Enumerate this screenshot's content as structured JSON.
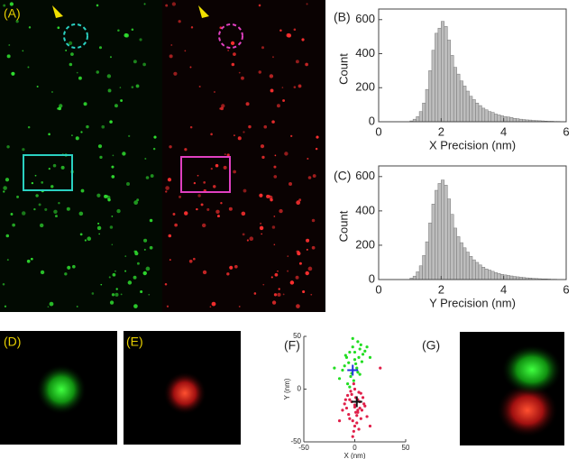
{
  "labels": [
    "(A)",
    "(B)",
    "(C)",
    "(D)",
    "(E)",
    "(F)",
    "(G)"
  ],
  "chart_data": [
    {
      "type": "histogram",
      "xlabel": "X Precision (nm)",
      "ylabel": "Count",
      "color": "#bdbdbd",
      "bins": [
        0.9,
        1.0,
        1.1,
        1.2,
        1.3,
        1.4,
        1.5,
        1.6,
        1.7,
        1.8,
        1.9,
        2.0,
        2.1,
        2.2,
        2.3,
        2.4,
        2.5,
        2.6,
        2.7,
        2.8,
        2.9,
        3.0,
        3.1,
        3.2,
        3.3,
        3.4,
        3.5,
        3.6,
        3.7,
        3.8,
        3.9,
        4.0,
        4.1,
        4.2,
        4.3,
        4.4,
        4.5,
        4.6,
        4.7,
        4.8,
        4.9,
        5.0,
        5.1,
        5.2,
        5.3,
        5.4,
        5.5,
        5.6,
        5.7,
        5.8,
        5.9,
        6.0
      ],
      "counts": [
        0,
        5,
        15,
        30,
        60,
        110,
        190,
        300,
        420,
        520,
        550,
        590,
        560,
        480,
        390,
        320,
        280,
        240,
        210,
        180,
        150,
        130,
        110,
        95,
        80,
        70,
        60,
        55,
        45,
        40,
        35,
        30,
        28,
        25,
        20,
        18,
        15,
        13,
        11,
        10,
        8,
        7,
        6,
        5,
        4,
        3,
        3,
        2,
        2,
        1,
        1
      ],
      "xlim": [
        0,
        6
      ],
      "xticks": [
        0,
        2,
        4,
        6
      ],
      "ylim": [
        0,
        620
      ],
      "yticks": [
        0,
        200,
        400,
        600
      ]
    },
    {
      "type": "histogram",
      "xlabel": "Y Precision (nm)",
      "ylabel": "Count",
      "color": "#bdbdbd",
      "bins": [
        0.9,
        1.0,
        1.1,
        1.2,
        1.3,
        1.4,
        1.5,
        1.6,
        1.7,
        1.8,
        1.9,
        2.0,
        2.1,
        2.2,
        2.3,
        2.4,
        2.5,
        2.6,
        2.7,
        2.8,
        2.9,
        3.0,
        3.1,
        3.2,
        3.3,
        3.4,
        3.5,
        3.6,
        3.7,
        3.8,
        3.9,
        4.0,
        4.1,
        4.2,
        4.3,
        4.4,
        4.5,
        4.6,
        4.7,
        4.8,
        4.9,
        5.0,
        5.1,
        5.2,
        5.3,
        5.4,
        5.5,
        5.6,
        5.7,
        5.8,
        5.9,
        6.0
      ],
      "counts": [
        0,
        8,
        20,
        45,
        80,
        140,
        220,
        330,
        440,
        520,
        560,
        580,
        550,
        470,
        380,
        300,
        250,
        215,
        185,
        160,
        135,
        115,
        100,
        85,
        72,
        62,
        55,
        48,
        40,
        35,
        30,
        27,
        24,
        21,
        18,
        16,
        14,
        12,
        10,
        9,
        7,
        6,
        5,
        4,
        4,
        3,
        2,
        2,
        1,
        1,
        1
      ],
      "xlim": [
        0,
        6
      ],
      "xticks": [
        0,
        2,
        4,
        6
      ],
      "ylim": [
        0,
        620
      ],
      "yticks": [
        0,
        200,
        400,
        600
      ]
    },
    {
      "type": "scatter",
      "xlabel": "X (nm)",
      "ylabel": "Y (nm)",
      "xlim": [
        -50,
        50
      ],
      "xticks": [
        -50,
        0,
        50
      ],
      "ylim": [
        -50,
        50
      ],
      "yticks": [
        -50,
        0,
        50
      ],
      "series": [
        {
          "color": "#22dd22",
          "marker": "dot",
          "x": [
            -8,
            -5,
            -2,
            0,
            3,
            5,
            8,
            -10,
            -12,
            -6,
            -3,
            2,
            6,
            10,
            -15,
            -4,
            1,
            4,
            -7,
            -1,
            7,
            12,
            -9,
            -2,
            3,
            -20,
            15,
            0,
            -5,
            5
          ],
          "values": [
            30,
            35,
            40,
            28,
            45,
            38,
            33,
            22,
            18,
            25,
            15,
            20,
            42,
            36,
            10,
            12,
            24,
            30,
            5,
            8,
            26,
            40,
            32,
            48,
            16,
            20,
            30,
            35,
            2,
            14
          ]
        },
        {
          "color": "#e0204a",
          "marker": "dot",
          "x": [
            -5,
            0,
            3,
            -3,
            5,
            -8,
            2,
            8,
            -2,
            1,
            -10,
            4,
            6,
            -6,
            0,
            10,
            -4,
            3,
            -1,
            7,
            -7,
            2,
            5,
            -3,
            12,
            -12,
            0,
            4,
            -5,
            1,
            9,
            -2,
            6,
            -9,
            3,
            0,
            25,
            -15,
            15,
            -1
          ],
          "values": [
            -10,
            -15,
            -20,
            -5,
            -12,
            -18,
            -25,
            -8,
            -30,
            -22,
            -14,
            -3,
            -28,
            -24,
            -35,
            -16,
            -2,
            -10,
            -40,
            -20,
            -6,
            -32,
            -18,
            -12,
            -26,
            -20,
            0,
            -38,
            -28,
            -8,
            -14,
            -45,
            -4,
            -10,
            -22,
            -17,
            20,
            -30,
            -35,
            5
          ]
        },
        {
          "color": "#2233dd",
          "marker": "cross",
          "x": [
            -2
          ],
          "values": [
            18
          ]
        },
        {
          "color": "#111111",
          "marker": "cross",
          "x": [
            2
          ],
          "values": [
            -12
          ]
        }
      ]
    }
  ]
}
